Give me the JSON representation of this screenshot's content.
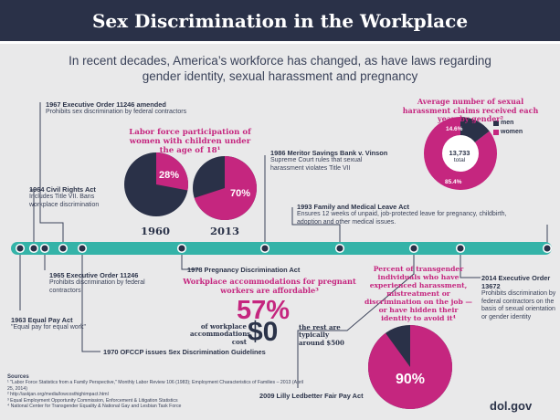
{
  "title": "Sex Discrimination in the Workplace",
  "subtitle": "In recent decades, America’s workforce has changed, as have laws regarding gender identity, sexual harassment and pregnancy",
  "colors": {
    "navy": "#2a3148",
    "pink": "#c5267f",
    "teal": "#34b3a8",
    "background": "#e9e9ea"
  },
  "events": [
    {
      "year": "1963",
      "title": "Equal Pay Act",
      "desc": "\"Equal pay for equal work\""
    },
    {
      "year": "1964",
      "title": "Civil Rights Act",
      "desc": "Includes Title VII. Bans workplace discrimination"
    },
    {
      "year": "1965",
      "title": "Executive Order 11246",
      "desc": "Prohibits discrimination by federal contractors"
    },
    {
      "year": "1967",
      "title": "Executive Order 11246 amended",
      "desc": "Prohibits sex discrimination by federal contractors"
    },
    {
      "year": "1970",
      "title": "OFCCP issues Sex Discrimination Guidelines",
      "desc": ""
    },
    {
      "year": "1978",
      "title": "Pregnancy Discrimination Act",
      "desc": ""
    },
    {
      "year": "1986",
      "title": "Meritor Savings Bank v. Vinson",
      "desc": "Supreme Court rules that sexual harassment violates Title VII"
    },
    {
      "year": "1993",
      "title": "Family and Medical Leave Act",
      "desc": "Ensures 12 weeks of unpaid, job-protected leave for pregnancy, childbirth, adoption and other medical issues."
    },
    {
      "year": "2009",
      "title": "Lilly Ledbetter Fair Pay Act",
      "desc": ""
    },
    {
      "year": "2014",
      "title": "Executive Order 13672",
      "desc": "Prohibits discrimination by federal contractors on the basis of sexual orientation or gender identity"
    }
  ],
  "labor": {
    "title": "Labor force participation of women with children under the age of 18¹",
    "pies": [
      {
        "year": "1960",
        "value": 28,
        "label": "28%"
      },
      {
        "year": "2013",
        "value": 70,
        "label": "70%"
      }
    ]
  },
  "harassment": {
    "title": "Average number of sexual harassment claims received each year, by gender²",
    "total": "13,733",
    "total_label": "total",
    "men_label": "men",
    "women_label": "women",
    "men_pct": 14.6,
    "women_pct": 85.4,
    "men_text": "14.6%",
    "women_text": "85.4%"
  },
  "pregnancy": {
    "title": "Workplace accommodations for pregnant workers are affordable³",
    "pct": "57%",
    "pct_text": "of workplace accommodations cost",
    "amount": "$0",
    "rest_text": "the rest are typically around $500"
  },
  "transgender": {
    "title": "Percent of transgender individuals who have experienced harassment, mistreatment or discrimination on the job — or have hidden their identity to avoid it⁴",
    "value": 90,
    "label": "90%"
  },
  "sources": {
    "heading": "Sources",
    "items": [
      "¹ \"Labor Force Statistics from a Family Perspective,\" Monthly Labor Review 106 (1983); Employment Characteristics of Families – 2013 (April 25, 2014)",
      "² http://askjan.org/media/lowcosthighimpact.html",
      "³ Equal Employment Opportunity Commission, Enforcement & Litigation Statistics",
      "⁴ National Center for Transgender Equality & National Gay and Lesbian Task Force"
    ]
  },
  "brand": "dol.gov"
}
